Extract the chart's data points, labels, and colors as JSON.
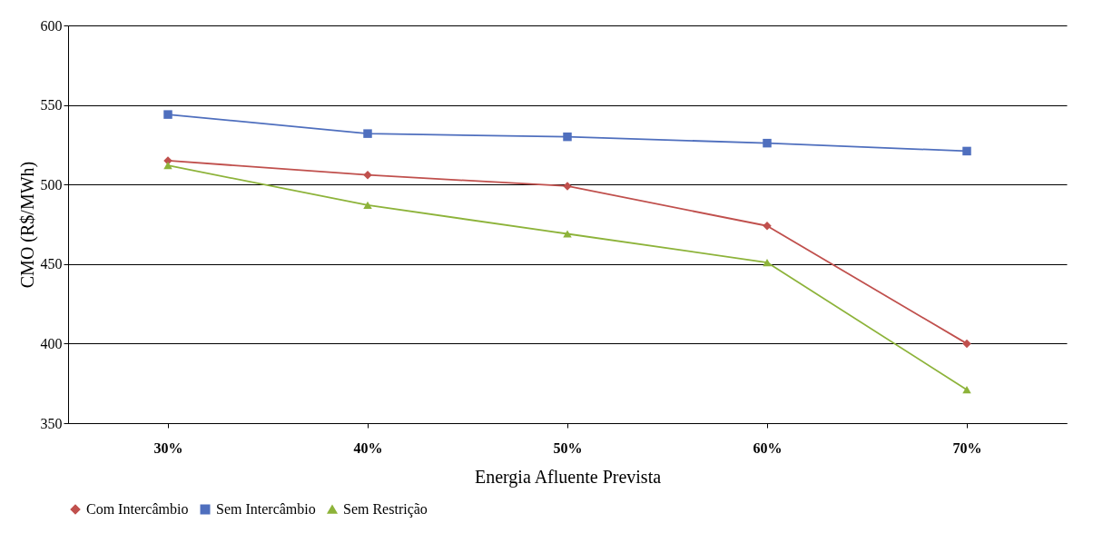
{
  "chart_data": {
    "type": "line",
    "xlabel": "Energia Afluente Prevista",
    "ylabel": "CMO (R$/MWh)",
    "categories": [
      "30%",
      "40%",
      "50%",
      "60%",
      "70%"
    ],
    "series": [
      {
        "name": "Com Intercâmbio",
        "color": "#c0504d",
        "marker": "diamond",
        "values": [
          515,
          506,
          499,
          474,
          400
        ]
      },
      {
        "name": "Sem Intercâmbio",
        "color": "#4f6fbe",
        "marker": "square",
        "values": [
          544,
          532,
          530,
          526,
          521
        ]
      },
      {
        "name": "Sem Restrição",
        "color": "#8db33a",
        "marker": "triangle",
        "values": [
          512,
          487,
          469,
          451,
          371
        ]
      }
    ],
    "ylim": [
      350,
      600
    ],
    "yticks": [
      350,
      400,
      450,
      500,
      550,
      600
    ],
    "grid": "y",
    "legend": "bottom",
    "line_style": "solid"
  }
}
